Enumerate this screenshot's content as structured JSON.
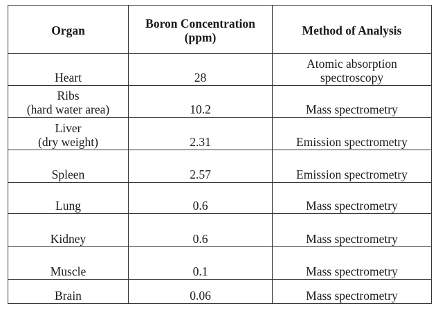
{
  "table": {
    "headers": [
      "Organ",
      "Boron Concentration (ppm)",
      "Method of Analysis"
    ],
    "header_lines": [
      [
        "Organ"
      ],
      [
        "Boron Concentration",
        "(ppm)"
      ],
      [
        "Method of Analysis"
      ]
    ],
    "rows": [
      {
        "organ": [
          "Heart"
        ],
        "concentration": "28",
        "method": [
          "Atomic absorption",
          "spectroscopy"
        ]
      },
      {
        "organ": [
          "Ribs",
          "(hard water area)"
        ],
        "concentration": "10.2",
        "method": [
          "Mass spectrometry"
        ]
      },
      {
        "organ": [
          "Liver",
          "(dry weight)"
        ],
        "concentration": "2.31",
        "method": [
          "Emission spectrometry"
        ]
      },
      {
        "organ": [
          "Spleen"
        ],
        "concentration": "2.57",
        "method": [
          "Emission spectrometry"
        ]
      },
      {
        "organ": [
          "Lung"
        ],
        "concentration": "0.6",
        "method": [
          "Mass spectrometry"
        ]
      },
      {
        "organ": [
          "Kidney"
        ],
        "concentration": "0.6",
        "method": [
          "Mass spectrometry"
        ]
      },
      {
        "organ": [
          "Muscle"
        ],
        "concentration": "0.1",
        "method": [
          "Mass spectrometry"
        ]
      },
      {
        "organ": [
          "Brain"
        ],
        "concentration": "0.06",
        "method": [
          "Mass spectrometry"
        ]
      }
    ]
  }
}
